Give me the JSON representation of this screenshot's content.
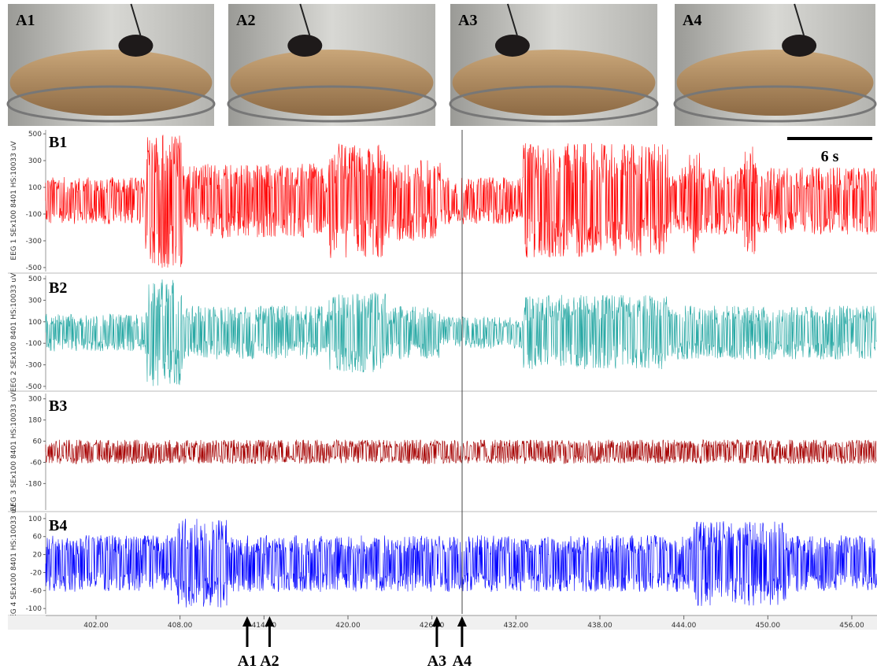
{
  "photos": [
    {
      "label": "A1"
    },
    {
      "label": "A2"
    },
    {
      "label": "A3"
    },
    {
      "label": "A4"
    }
  ],
  "panels": [
    {
      "label": "B1",
      "channel": "EEG 1 SEx100 8401 HS:10033 uV",
      "color": "#ff0000",
      "ylim": [
        -530,
        530
      ],
      "yticks": [
        500,
        300,
        100,
        -100,
        -300,
        -500
      ]
    },
    {
      "label": "B2",
      "channel": "EEG 2 SEx100 8401 HS:10033 uV",
      "color": "#2aa9a5",
      "ylim": [
        -530,
        530
      ],
      "yticks": [
        500,
        300,
        100,
        -100,
        -300,
        -500
      ]
    },
    {
      "label": "B3",
      "channel": "EEG 3 SEx100 8401 HS:10033 uV",
      "color": "#a50000",
      "ylim": [
        -330,
        330
      ],
      "yticks": [
        300,
        180,
        60,
        -60,
        -180
      ]
    },
    {
      "label": "B4",
      "channel": "EEG 4 SEx100 8401 HS:10033 uV",
      "color": "#0000ff",
      "ylim": [
        -112,
        112
      ],
      "yticks": [
        100,
        60,
        20,
        -20,
        -60,
        -100
      ]
    }
  ],
  "scale_bar": {
    "label": "6 s"
  },
  "time_axis": {
    "xlim": [
      398.4,
      457.8
    ],
    "xticks": [
      {
        "value": 402,
        "label": "402.00"
      },
      {
        "value": 408,
        "label": "408.00"
      },
      {
        "value": 414,
        "label": "414.00"
      },
      {
        "value": 420,
        "label": "420.00"
      },
      {
        "value": 426,
        "label": "426.00"
      },
      {
        "value": 432,
        "label": "432.00"
      },
      {
        "value": 438,
        "label": "438.00"
      },
      {
        "value": 444,
        "label": "444.00"
      },
      {
        "value": 450,
        "label": "450.00"
      },
      {
        "value": 456,
        "label": "456.00"
      }
    ]
  },
  "markers": [
    {
      "label": "A1",
      "time": 412.8
    },
    {
      "label": "A2",
      "time": 414.4
    },
    {
      "label": "A3",
      "time": 426.35
    },
    {
      "label": "A4",
      "time": 428.15
    }
  ]
}
